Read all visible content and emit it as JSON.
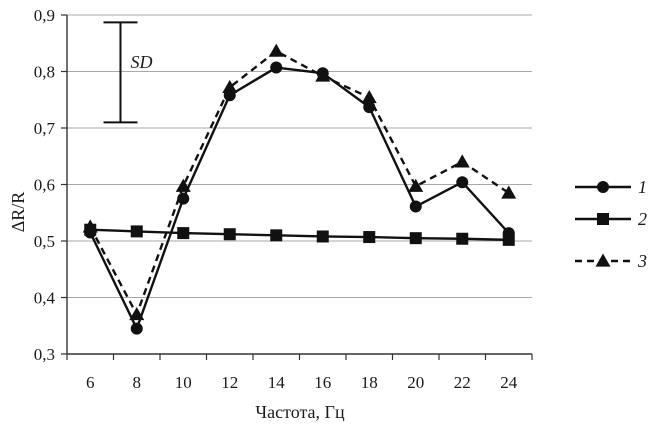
{
  "chart_data": {
    "type": "line",
    "xlabel": "Частота, Гц",
    "ylabel": "ΔR/R",
    "x": [
      6,
      8,
      10,
      12,
      14,
      16,
      18,
      20,
      22,
      24
    ],
    "x_tick_labels": [
      "6",
      "8",
      "10",
      "12",
      "14",
      "16",
      "18",
      "20",
      "22",
      "24"
    ],
    "ylim": [
      0.3,
      0.9
    ],
    "y_ticks": [
      0.3,
      0.4,
      0.5,
      0.6,
      0.7,
      0.8,
      0.9
    ],
    "y_tick_labels": [
      "0,3",
      "0,4",
      "0,5",
      "0,6",
      "0,7",
      "0,8",
      "0,9"
    ],
    "grid": "horizontal",
    "legend_position": "right",
    "series": [
      {
        "name": "1",
        "marker": "circle",
        "line_style": "solid",
        "values": [
          0.515,
          0.345,
          0.575,
          0.758,
          0.807,
          0.797,
          0.737,
          0.561,
          0.604,
          0.514
        ]
      },
      {
        "name": "2",
        "marker": "square",
        "line_style": "solid",
        "values": [
          0.52,
          0.517,
          0.514,
          0.512,
          0.51,
          0.508,
          0.507,
          0.505,
          0.504,
          0.502
        ]
      },
      {
        "name": "3",
        "marker": "triangle",
        "line_style": "dashed",
        "values": [
          0.525,
          0.37,
          0.597,
          0.772,
          0.836,
          0.792,
          0.754,
          0.597,
          0.64,
          0.585
        ]
      }
    ],
    "error_bar": {
      "label": "SD",
      "low": 0.71,
      "high": 0.887,
      "x_position": 7.3
    },
    "colors": {
      "line": "#111111",
      "grid": "#a8a8a8"
    }
  }
}
